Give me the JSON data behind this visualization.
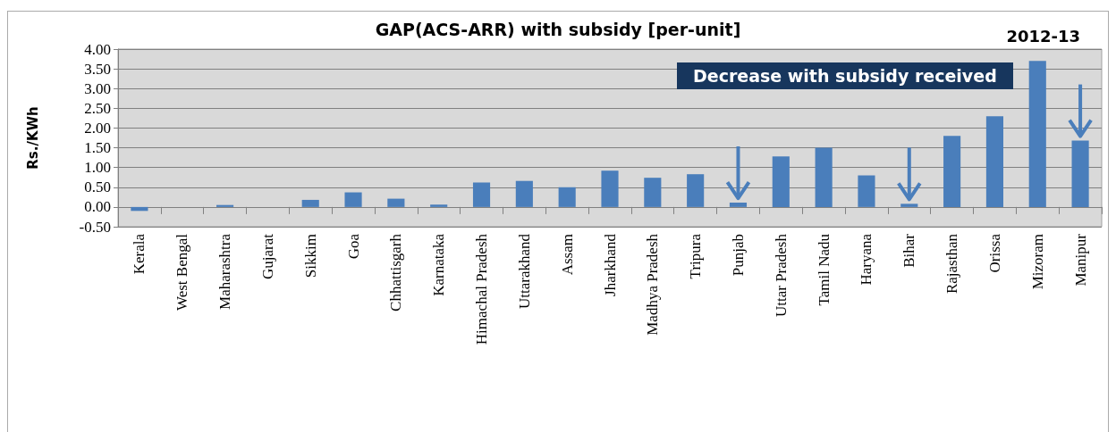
{
  "chart_data": {
    "type": "bar",
    "title": "GAP(ACS-ARR) with subsidy [per-unit]",
    "ylabel": "Rs./KWh",
    "categories": [
      "Kerala",
      "West Bengal",
      "Maharashtra",
      "Gujarat",
      "Sikkim",
      "Goa",
      "Chhattisgarh",
      "Karnataka",
      "Himachal Pradesh",
      "Uttarakhand",
      "Assam",
      "Jharkhand",
      "Madhya Pradesh",
      "Tripura",
      "Punjab",
      "Uttar Pradesh",
      "Tamil Nadu",
      "Haryana",
      "Bihar",
      "Rajasthan",
      "Orissa",
      "Mizoram",
      "Manipur"
    ],
    "values": [
      -0.1,
      0,
      0.05,
      0,
      0.18,
      0.37,
      0.21,
      0.06,
      0.62,
      0.66,
      0.5,
      0.92,
      0.74,
      0.83,
      0.11,
      1.28,
      1.5,
      0.8,
      0.08,
      1.8,
      2.3,
      3.7,
      1.68
    ],
    "color": "#4a7ebb",
    "ylim": [
      -0.5,
      4
    ],
    "yticks": [
      {
        "value": -0.5,
        "label": "-0.50"
      },
      {
        "value": 0,
        "label": "0.00"
      },
      {
        "value": 0.5,
        "label": "0.50"
      },
      {
        "value": 1,
        "label": "1.00"
      },
      {
        "value": 1.5,
        "label": "1.50"
      },
      {
        "value": 2,
        "label": "2.00"
      },
      {
        "value": 2.5,
        "label": "2.50"
      },
      {
        "value": 3,
        "label": "3.00"
      },
      {
        "value": 3.5,
        "label": "3.50"
      },
      {
        "value": 4,
        "label": "4.00"
      }
    ],
    "grid": "y",
    "annotations": [
      "Decrease with subsidy received",
      "2012-13"
    ]
  }
}
